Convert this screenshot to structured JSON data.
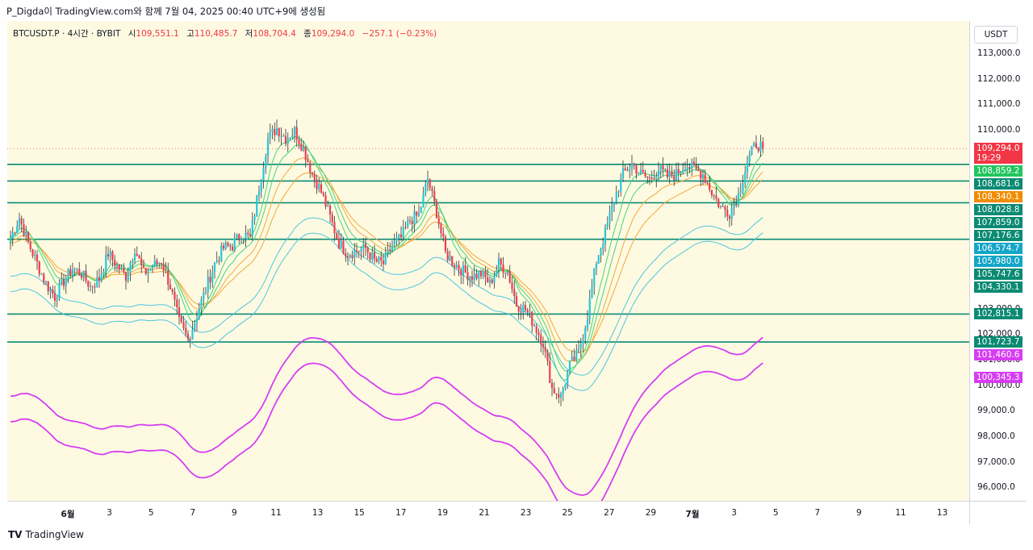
{
  "header": {
    "text": "P_Digda이 TradingView.com와 함께 7월 04, 2025 00:40 UTC+9에 생성됨"
  },
  "legend": {
    "symbol": "BTCUSDT.P · 4시간 · BYBIT",
    "open_label": "시",
    "open": "109,551.1",
    "high_label": "고",
    "high": "110,485.7",
    "low_label": "저",
    "low": "108,704.4",
    "close_label": "종",
    "close": "109,294.0",
    "change": "−257.1 (−0.23%)"
  },
  "unit": "USDT",
  "footer": {
    "logo": "TV",
    "brand": "TradingView"
  },
  "colors": {
    "background": "#fefae2",
    "up": "#26c6da",
    "down": "#ef3d4f",
    "level_line": "#0b8a73",
    "ema_fast": "#45d37c",
    "ema_slow": "#f2a83b",
    "band": "#4cc6df",
    "outer_band": "#d63df2"
  },
  "chart_data": {
    "type": "candlestick",
    "interval": "4H",
    "ylim": [
      95500,
      114300
    ],
    "yticks": [
      {
        "value": 113000,
        "label": "113,000.0"
      },
      {
        "value": 112000,
        "label": "112,000.0"
      },
      {
        "value": 111000,
        "label": "111,000.0"
      },
      {
        "value": 110000,
        "label": "110,000.0"
      },
      {
        "value": 103000,
        "label": "103,000.0"
      },
      {
        "value": 102000,
        "label": "102,000.0"
      },
      {
        "value": 101000,
        "label": "101,000.0"
      },
      {
        "value": 100000,
        "label": "100,000.0"
      },
      {
        "value": 99000,
        "label": "99,000.0"
      },
      {
        "value": 98000,
        "label": "98,000.0"
      },
      {
        "value": 97000,
        "label": "97,000.0"
      },
      {
        "value": 96000,
        "label": "96,000.0"
      }
    ],
    "xticks": [
      "6월",
      "3",
      "5",
      "7",
      "9",
      "11",
      "13",
      "15",
      "17",
      "19",
      "21",
      "23",
      "25",
      "27",
      "29",
      "7월",
      "3",
      "5",
      "7",
      "9",
      "11",
      "13"
    ],
    "horizontal_levels": [
      108681.6,
      108028.8,
      107176.6,
      105747.6,
      102815.1,
      101723.7
    ],
    "price_labels": [
      {
        "value": 109294.0,
        "text": "109,294.0",
        "sub": "19:29",
        "color": "#f23645"
      },
      {
        "value": 108859.2,
        "text": "108,859.2",
        "color": "#22c55e"
      },
      {
        "value": 108681.6,
        "text": "108,681.6",
        "color": "#0b8a73"
      },
      {
        "value": 108340.1,
        "text": "108,340.1",
        "color": "#f08c00"
      },
      {
        "value": 108028.8,
        "text": "108,028.8",
        "color": "#0b8a73"
      },
      {
        "value": 107859.0,
        "text": "107,859.0",
        "color": "#0b8a73"
      },
      {
        "value": 107176.6,
        "text": "107,176.6",
        "color": "#0b8a73"
      },
      {
        "value": 106574.7,
        "text": "106,574.7",
        "color": "#13a6c8"
      },
      {
        "value": 105980.0,
        "text": "105,980.0",
        "color": "#13a6c8"
      },
      {
        "value": 105747.6,
        "text": "105,747.6",
        "color": "#0b8a73"
      },
      {
        "value": 104330.1,
        "text": "104,330.1",
        "color": "#0b8a73"
      },
      {
        "value": 102815.1,
        "text": "102,815.1",
        "color": "#0b8a73"
      },
      {
        "value": 101723.7,
        "text": "101,723.7",
        "color": "#0b8a73"
      },
      {
        "value": 101460.6,
        "text": "101,460.6",
        "color": "#d63df2"
      },
      {
        "value": 100345.3,
        "text": "100,345.3",
        "color": "#d63df2"
      }
    ],
    "price_path": [
      105800,
      106600,
      105600,
      104800,
      104000,
      103500,
      104100,
      104600,
      104400,
      103900,
      104200,
      105200,
      104700,
      104300,
      105400,
      104400,
      104700,
      104900,
      103900,
      102500,
      101800,
      102800,
      103800,
      104800,
      105400,
      105500,
      106000,
      105800,
      107800,
      109700,
      110100,
      109700,
      110000,
      109300,
      108300,
      107600,
      106600,
      105600,
      105200,
      105300,
      105400,
      104900,
      104800,
      105500,
      105800,
      106500,
      106700,
      108100,
      106800,
      105200,
      104800,
      104500,
      104300,
      104400,
      104000,
      104800,
      104500,
      103200,
      103000,
      102400,
      101700,
      99900,
      99600,
      100800,
      101300,
      102800,
      104900,
      106000,
      107300,
      108300,
      108700,
      108300,
      108100,
      108500,
      108200,
      108300,
      108700,
      108500,
      108300,
      107600,
      107000,
      106800,
      107500,
      108800,
      109500,
      109300
    ]
  }
}
